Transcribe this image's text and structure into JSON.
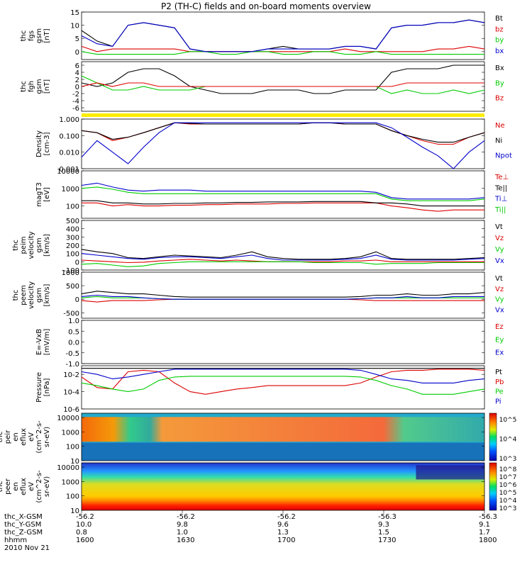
{
  "title": "P2 (TH-C) fields and on-board moments overview",
  "chart_data": [
    {
      "type": "line",
      "id": "fgs",
      "ylabel": [
        "thc",
        "fgs",
        "gsm",
        "[nT]"
      ],
      "ylim": [
        -3,
        15
      ],
      "yticks": [
        "15",
        "10",
        "5",
        "0"
      ],
      "ytick_vals": [
        15,
        10,
        5,
        0
      ],
      "series": [
        {
          "name": "Bt",
          "color": "#000000",
          "values": [
            8,
            4,
            2,
            10,
            11,
            10,
            9,
            1,
            0,
            0,
            0,
            0,
            1,
            2,
            1,
            1,
            1,
            2,
            2,
            1,
            9,
            10,
            10,
            11,
            11,
            12,
            11
          ]
        },
        {
          "name": "bz",
          "color": "#dd0000",
          "values": [
            2,
            0,
            1,
            1,
            1,
            1,
            1,
            0,
            0,
            0,
            0,
            0,
            0,
            0,
            0,
            0,
            0,
            1,
            0,
            0,
            0,
            0,
            0,
            1,
            1,
            2,
            1
          ]
        },
        {
          "name": "by",
          "color": "#00cc00",
          "values": [
            0,
            -1,
            -1,
            -1,
            -1,
            -1,
            -1,
            0,
            0,
            -1,
            -1,
            0,
            0,
            -1,
            -1,
            0,
            0,
            -1,
            -1,
            0,
            -1,
            -1,
            -1,
            -1,
            -1,
            -1,
            -1
          ]
        },
        {
          "name": "bx",
          "color": "#0000cc",
          "values": [
            6,
            3,
            2,
            10,
            11,
            10,
            9,
            1,
            0,
            0,
            0,
            0,
            1,
            1,
            1,
            1,
            1,
            2,
            2,
            1,
            9,
            10,
            10,
            11,
            11,
            12,
            11
          ]
        }
      ]
    },
    {
      "type": "line",
      "id": "fgh",
      "ylabel": [
        "thc",
        "fgh",
        "gsm",
        "[nT]"
      ],
      "ylim": [
        -7,
        7
      ],
      "yticks": [
        "6",
        "4",
        "2",
        "0",
        "-2",
        "-4",
        "-6"
      ],
      "ytick_vals": [
        6,
        4,
        2,
        0,
        -2,
        -4,
        -6
      ],
      "series": [
        {
          "name": "Bx",
          "color": "#000000",
          "values": [
            1,
            0,
            1,
            4,
            5,
            5,
            3,
            0,
            -1,
            -2,
            -2,
            -2,
            -1,
            -1,
            -1,
            -2,
            -2,
            -1,
            -1,
            -1,
            4,
            5,
            5,
            5,
            6,
            6,
            6
          ]
        },
        {
          "name": "By",
          "color": "#00cc00",
          "values": [
            3,
            1,
            -1,
            -1,
            0,
            -1,
            -1,
            -1,
            0,
            0,
            0,
            0,
            0,
            0,
            0,
            0,
            0,
            0,
            0,
            0,
            -2,
            -1,
            -2,
            -2,
            -1,
            -2,
            -1
          ]
        },
        {
          "name": "Bz",
          "color": "#dd0000",
          "values": [
            0,
            1,
            0,
            1,
            1,
            0,
            0,
            0,
            0,
            0,
            0,
            0,
            0,
            0,
            0,
            0,
            0,
            0,
            0,
            0,
            0,
            1,
            1,
            1,
            1,
            1,
            1
          ]
        }
      ]
    },
    {
      "type": "line",
      "id": "density",
      "log": true,
      "ylabel": [
        "Density",
        "[cm-3]"
      ],
      "ylim": [
        0.001,
        1.0
      ],
      "yticks": [
        "1.000",
        "0.100",
        "0.010",
        "0.001"
      ],
      "ytick_vals": [
        1,
        0.1,
        0.01,
        0.001
      ],
      "series": [
        {
          "name": "Ne",
          "color": "#dd0000",
          "values": [
            0.2,
            0.15,
            0.05,
            0.08,
            0.15,
            0.3,
            0.6,
            0.5,
            0.5,
            0.5,
            0.5,
            0.5,
            0.5,
            0.5,
            0.5,
            0.6,
            0.6,
            0.5,
            0.5,
            0.5,
            0.2,
            0.1,
            0.05,
            0.03,
            0.03,
            0.08,
            0.15
          ]
        },
        {
          "name": "Ni",
          "color": "#000000",
          "values": [
            0.2,
            0.15,
            0.06,
            0.08,
            0.15,
            0.3,
            0.6,
            0.55,
            0.5,
            0.5,
            0.5,
            0.5,
            0.5,
            0.5,
            0.5,
            0.6,
            0.6,
            0.5,
            0.5,
            0.5,
            0.2,
            0.1,
            0.06,
            0.04,
            0.04,
            0.08,
            0.15
          ]
        },
        {
          "name": "Npot",
          "color": "#0000cc",
          "values": [
            0.005,
            0.05,
            0.01,
            0.002,
            0.02,
            0.15,
            0.6,
            0.6,
            0.6,
            0.6,
            0.6,
            0.6,
            0.6,
            0.6,
            0.6,
            0.6,
            0.6,
            0.6,
            0.6,
            0.6,
            0.3,
            0.08,
            0.02,
            0.006,
            0.001,
            0.01,
            0.05
          ]
        }
      ]
    },
    {
      "type": "line",
      "id": "temp",
      "log": true,
      "ylabel": [
        "magT3",
        "[eV]"
      ],
      "ylim": [
        20,
        10000
      ],
      "yticks": [
        "10000",
        "1000",
        "100"
      ],
      "ytick_vals": [
        10000,
        1000,
        100
      ],
      "series": [
        {
          "name": "Te⊥",
          "color": "#dd0000",
          "values": [
            150,
            150,
            100,
            120,
            100,
            100,
            110,
            110,
            120,
            120,
            130,
            130,
            130,
            140,
            140,
            150,
            150,
            150,
            150,
            150,
            100,
            80,
            60,
            50,
            60,
            60,
            60
          ]
        },
        {
          "name": "Te||",
          "color": "#000000",
          "values": [
            200,
            200,
            150,
            150,
            130,
            130,
            140,
            140,
            150,
            150,
            160,
            160,
            170,
            170,
            170,
            180,
            180,
            180,
            180,
            150,
            150,
            130,
            100,
            100,
            100,
            100,
            100
          ]
        },
        {
          "name": "Ti⊥",
          "color": "#0000cc",
          "values": [
            1500,
            2000,
            1200,
            800,
            700,
            800,
            800,
            800,
            700,
            700,
            700,
            700,
            700,
            700,
            700,
            700,
            700,
            700,
            700,
            600,
            300,
            250,
            250,
            250,
            250,
            250,
            300
          ]
        },
        {
          "name": "Ti||",
          "color": "#00cc00",
          "values": [
            1000,
            1200,
            900,
            600,
            500,
            500,
            500,
            500,
            500,
            500,
            500,
            500,
            500,
            500,
            500,
            500,
            500,
            500,
            500,
            500,
            250,
            200,
            200,
            200,
            200,
            200,
            250
          ]
        }
      ]
    },
    {
      "type": "line",
      "id": "peim",
      "ylabel": [
        "thc",
        "peim",
        "velocity",
        "gsm",
        "[km/s]"
      ],
      "ylim": [
        -100,
        500
      ],
      "yticks": [
        "500",
        "400",
        "300",
        "200",
        "100",
        "0",
        "-100"
      ],
      "ytick_vals": [
        500,
        400,
        300,
        200,
        100,
        0,
        -100
      ],
      "series": [
        {
          "name": "Vt",
          "color": "#000000",
          "values": [
            150,
            120,
            100,
            50,
            40,
            60,
            80,
            70,
            60,
            50,
            80,
            120,
            60,
            40,
            30,
            30,
            30,
            40,
            60,
            120,
            40,
            30,
            30,
            30,
            30,
            40,
            50
          ]
        },
        {
          "name": "Vz",
          "color": "#dd0000",
          "values": [
            20,
            10,
            0,
            -10,
            -5,
            10,
            20,
            30,
            20,
            10,
            20,
            10,
            0,
            0,
            0,
            0,
            0,
            10,
            10,
            20,
            0,
            0,
            0,
            0,
            0,
            0,
            0
          ]
        },
        {
          "name": "Vy",
          "color": "#00cc00",
          "values": [
            -30,
            -20,
            -40,
            -60,
            -50,
            -20,
            -10,
            0,
            0,
            0,
            0,
            0,
            0,
            0,
            0,
            -10,
            -10,
            -10,
            -10,
            -30,
            -20,
            -20,
            -20,
            -10,
            -10,
            -10,
            -10
          ]
        },
        {
          "name": "Vx",
          "color": "#0000cc",
          "values": [
            100,
            80,
            60,
            40,
            30,
            50,
            60,
            60,
            50,
            40,
            60,
            80,
            40,
            20,
            20,
            20,
            20,
            30,
            40,
            80,
            30,
            20,
            20,
            20,
            20,
            30,
            40
          ]
        }
      ]
    },
    {
      "type": "line",
      "id": "peem",
      "ylabel": [
        "thc",
        "peem",
        "velocity",
        "gsm",
        "[km/s]"
      ],
      "ylim": [
        -700,
        1000
      ],
      "yticks": [
        "1000",
        "500",
        "0",
        "-500"
      ],
      "ytick_vals": [
        1000,
        500,
        0,
        -500
      ],
      "series": [
        {
          "name": "Vt",
          "color": "#000000",
          "values": [
            200,
            300,
            250,
            200,
            200,
            150,
            100,
            80,
            80,
            80,
            80,
            80,
            80,
            80,
            80,
            80,
            80,
            80,
            100,
            150,
            150,
            200,
            150,
            150,
            200,
            200,
            250
          ]
        },
        {
          "name": "Vz",
          "color": "#dd0000",
          "values": [
            -50,
            -100,
            -50,
            -50,
            -50,
            -20,
            0,
            0,
            0,
            0,
            0,
            0,
            0,
            0,
            0,
            0,
            0,
            0,
            -20,
            -50,
            -50,
            -50,
            -50,
            -50,
            -50,
            -50,
            -50
          ]
        },
        {
          "name": "Vy",
          "color": "#00cc00",
          "values": [
            50,
            100,
            50,
            50,
            50,
            20,
            0,
            0,
            0,
            0,
            0,
            0,
            0,
            0,
            0,
            0,
            0,
            0,
            20,
            50,
            50,
            50,
            50,
            50,
            50,
            50,
            50
          ]
        },
        {
          "name": "Vx",
          "color": "#0000cc",
          "values": [
            100,
            150,
            100,
            100,
            50,
            20,
            0,
            0,
            0,
            0,
            0,
            0,
            0,
            0,
            0,
            0,
            0,
            0,
            20,
            50,
            50,
            100,
            50,
            50,
            100,
            100,
            100
          ]
        }
      ]
    },
    {
      "type": "line",
      "id": "efield",
      "ylabel": [
        "E=-VxB",
        "[mV/m]"
      ],
      "ylim": [
        -1,
        1
      ],
      "yticks": [
        "1.0",
        "0.5",
        "0.0",
        "-0.5",
        "-1.0"
      ],
      "ytick_vals": [
        1.0,
        0.5,
        0.0,
        -0.5,
        -1.0
      ],
      "series": [
        {
          "name": "Ez",
          "color": "#dd0000",
          "values": []
        },
        {
          "name": "Ey",
          "color": "#00cc00",
          "values": []
        },
        {
          "name": "Ex",
          "color": "#0000cc",
          "values": []
        }
      ]
    },
    {
      "type": "line",
      "id": "pressure",
      "log": true,
      "ylabel": [
        "Pressure",
        "[nPa]"
      ],
      "ylim": [
        1e-06,
        0.1
      ],
      "yticks": [
        "10-2",
        "10-4",
        "10-6"
      ],
      "ytick_vals": [
        0.01,
        0.0001,
        1e-06
      ],
      "series": [
        {
          "name": "Pt",
          "color": "#000000",
          "values": [
            0.05,
            0.05,
            0.05,
            0.05,
            0.05,
            0.05,
            0.05,
            0.05,
            0.05,
            0.05,
            0.05,
            0.05,
            0.05,
            0.05,
            0.05,
            0.05,
            0.05,
            0.05,
            0.05,
            0.05,
            0.05,
            0.05,
            0.05,
            0.05,
            0.05,
            0.05,
            0.05
          ]
        },
        {
          "name": "Pb",
          "color": "#dd0000",
          "values": [
            0.005,
            0.0003,
            0.0002,
            0.02,
            0.03,
            0.02,
            0.001,
            0.0001,
            5e-05,
            0.0001,
            0.0002,
            0.0003,
            0.0005,
            0.0005,
            0.0005,
            0.0005,
            0.0005,
            0.0005,
            0.001,
            0.005,
            0.02,
            0.03,
            0.03,
            0.04,
            0.04,
            0.04,
            0.03
          ]
        },
        {
          "name": "Pe",
          "color": "#00cc00",
          "values": [
            0.001,
            0.0005,
            0.0002,
            0.0001,
            0.0002,
            0.002,
            0.005,
            0.006,
            0.006,
            0.006,
            0.006,
            0.006,
            0.006,
            0.006,
            0.006,
            0.006,
            0.006,
            0.006,
            0.005,
            0.002,
            0.0005,
            0.0002,
            5e-05,
            5e-05,
            5e-05,
            0.0001,
            0.0002
          ]
        },
        {
          "name": "Pi",
          "color": "#0000cc",
          "values": [
            0.02,
            0.01,
            0.003,
            0.005,
            0.01,
            0.02,
            0.04,
            0.04,
            0.04,
            0.04,
            0.04,
            0.04,
            0.04,
            0.04,
            0.04,
            0.04,
            0.04,
            0.04,
            0.03,
            0.01,
            0.003,
            0.002,
            0.001,
            0.001,
            0.001,
            0.002,
            0.003
          ]
        }
      ]
    },
    {
      "type": "heatmap",
      "id": "peir",
      "ylabel": [
        "thc",
        "peir",
        "en",
        "eflux",
        "eV",
        "(cm^2-s-",
        "sr-eV)"
      ],
      "yticks": [
        "10000",
        "1000",
        "100",
        "10"
      ],
      "ytick_vals": [
        10000,
        1000,
        100,
        10
      ],
      "colorbar_ticks": [
        "10^5",
        "10^4",
        "10^3"
      ]
    },
    {
      "type": "heatmap",
      "id": "peer",
      "ylabel": [
        "thc",
        "peer",
        "en",
        "eflux",
        "eV",
        "(cm^2-s-",
        "sr-eV)"
      ],
      "yticks": [
        "10000",
        "1000",
        "100",
        "10"
      ],
      "ytick_vals": [
        10000,
        1000,
        100,
        10
      ],
      "colorbar_ticks": [
        "10^8",
        "10^7",
        "10^6",
        "10^5",
        "10^4",
        "10^3"
      ]
    }
  ],
  "xaxis": {
    "row_labels": [
      "thc_X-GSM",
      "thc_Y-GSM",
      "thc_Z-GSM",
      "hhmm",
      "2010 Nov 21"
    ],
    "ticks": [
      {
        "x": "-56.2",
        "y": "10.0",
        "z": "0.8",
        "hhmm": "1600"
      },
      {
        "x": "-56.2",
        "y": "9.8",
        "z": "1.0",
        "hhmm": "1630"
      },
      {
        "x": "-56.2",
        "y": "9.6",
        "z": "1.3",
        "hhmm": "1700"
      },
      {
        "x": "-56.3",
        "y": "9.3",
        "z": "1.5",
        "hhmm": "1730"
      },
      {
        "x": "-56.3",
        "y": "9.1",
        "z": "1.7",
        "hhmm": "1800"
      }
    ]
  }
}
